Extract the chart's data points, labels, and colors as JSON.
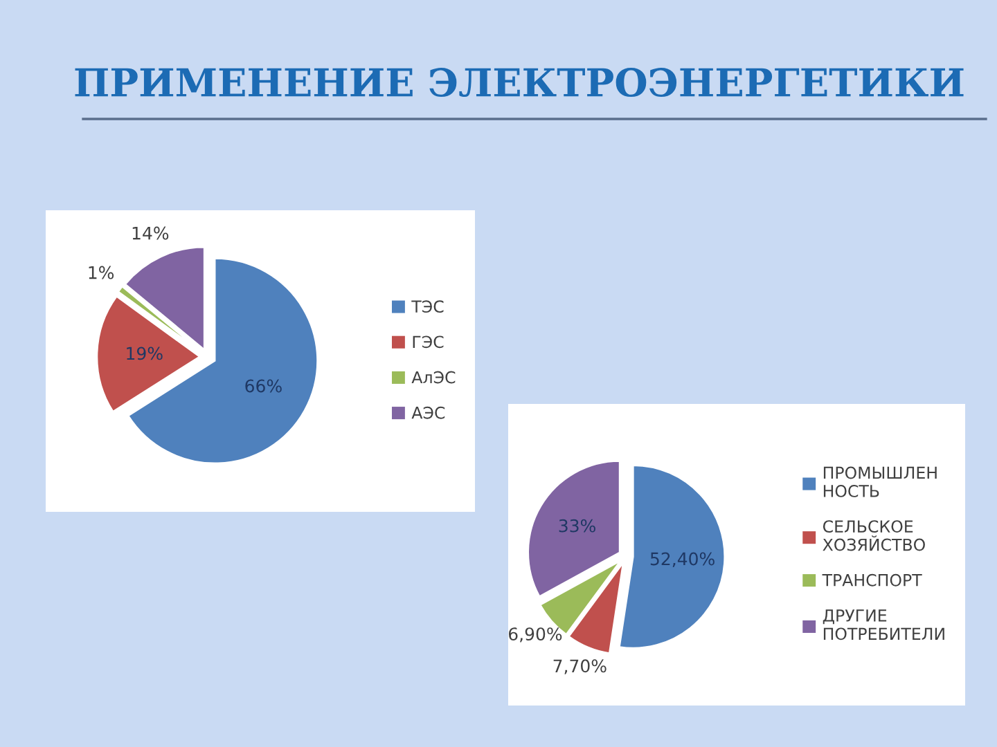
{
  "chart_data": [
    {
      "type": "pie",
      "title": "ПРИМЕНЕНИЕ ЭЛЕКТРОЭНЕРГЕТИКИ",
      "categories": [
        "ТЭС",
        "ГЭС",
        "АлЭС",
        "АЭС"
      ],
      "values": [
        66,
        19,
        1,
        14
      ],
      "value_labels": [
        "66%",
        "19%",
        "1%",
        "14%"
      ],
      "colors": [
        "#4f81bd",
        "#c0504d",
        "#9bbb59",
        "#8064a2"
      ],
      "legend": "right"
    },
    {
      "type": "pie",
      "categories": [
        "ПРОМЫШЛЕН\nНОСТЬ",
        "СЕЛЬСКОЕ\nХОЗЯЙСТВО",
        "ТРАНСПОРТ",
        "ДРУГИЕ\nПОТРЕБИТЕЛИ"
      ],
      "values": [
        52.4,
        7.7,
        6.9,
        33
      ],
      "value_labels": [
        "52,40%",
        "7,70%",
        "6,90%",
        "33%"
      ],
      "colors": [
        "#4f81bd",
        "#c0504d",
        "#9bbb59",
        "#8064a2"
      ],
      "legend": "right"
    }
  ]
}
